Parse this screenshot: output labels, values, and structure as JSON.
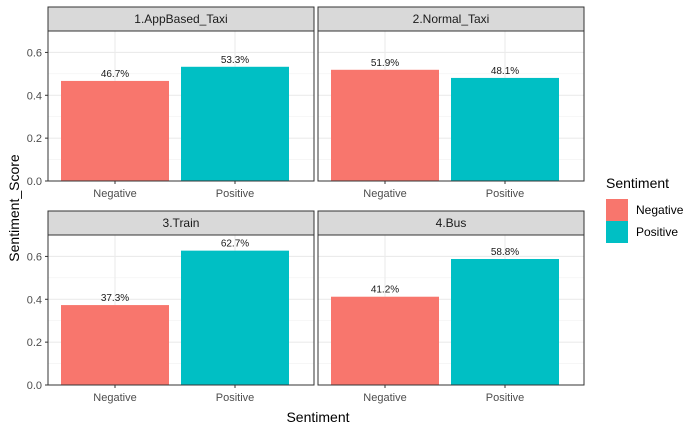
{
  "chart_data": {
    "type": "bar",
    "xlabel": "Sentiment",
    "ylabel": "Sentiment_Score",
    "ylim": [
      0,
      0.7
    ],
    "yticks": [
      0.0,
      0.2,
      0.4,
      0.6
    ],
    "ytick_labels": [
      "0.0",
      "0.2",
      "0.4",
      "0.6"
    ],
    "categories": [
      "Negative",
      "Positive"
    ],
    "grid": true,
    "legend": {
      "title": "Sentiment",
      "position": "right",
      "entries": [
        "Negative",
        "Positive"
      ]
    },
    "colors": {
      "Negative": "#F8766D",
      "Positive": "#00BFC4"
    },
    "panels": [
      {
        "title": "1.AppBased_Taxi",
        "values": [
          0.467,
          0.533
        ],
        "labels": [
          "46.7%",
          "53.3%"
        ]
      },
      {
        "title": "2.Normal_Taxi",
        "values": [
          0.519,
          0.481
        ],
        "labels": [
          "51.9%",
          "48.1%"
        ]
      },
      {
        "title": "3.Train",
        "values": [
          0.373,
          0.627
        ],
        "labels": [
          "37.3%",
          "62.7%"
        ]
      },
      {
        "title": "4.Bus",
        "values": [
          0.412,
          0.588
        ],
        "labels": [
          "41.2%",
          "58.8%"
        ]
      }
    ]
  }
}
